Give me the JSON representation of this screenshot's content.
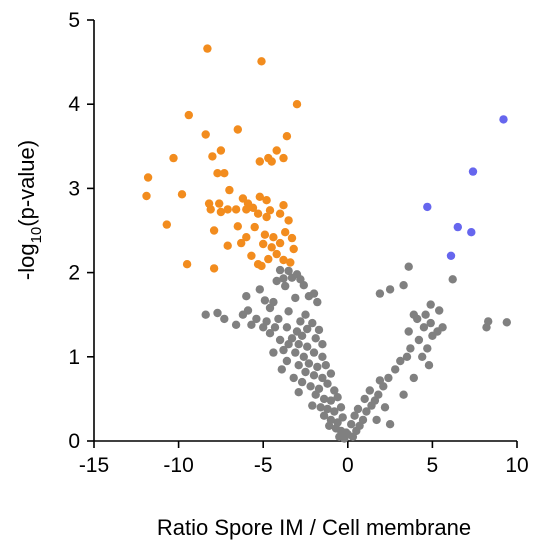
{
  "chart_data": {
    "type": "scatter",
    "title": "",
    "xlabel": "Ratio Spore IM / Cell membrane",
    "ylabel_parts": {
      "prefix": "-log",
      "subscript": "10",
      "suffix": "(p-value)"
    },
    "xlim": [
      -15,
      10
    ],
    "ylim": [
      0,
      5
    ],
    "xticks": [
      "-15",
      "-10",
      "-5",
      "0",
      "5",
      "10"
    ],
    "yticks": [
      "0",
      "1",
      "2",
      "3",
      "4",
      "5"
    ],
    "xtick_values": [
      -15,
      -10,
      -5,
      0,
      5,
      10
    ],
    "ytick_values": [
      0,
      1,
      2,
      3,
      4,
      5
    ],
    "grid": false,
    "legend": "none",
    "series": [
      {
        "color": "#f28c1e",
        "points": [
          [
            -8.3,
            4.66
          ],
          [
            -5.1,
            4.51
          ],
          [
            -3.0,
            4.0
          ],
          [
            -9.4,
            3.87
          ],
          [
            -6.5,
            3.7
          ],
          [
            -3.6,
            3.62
          ],
          [
            -8.4,
            3.64
          ],
          [
            -7.5,
            3.45
          ],
          [
            -4.2,
            3.45
          ],
          [
            -10.3,
            3.36
          ],
          [
            -8.0,
            3.38
          ],
          [
            -4.7,
            3.36
          ],
          [
            -3.8,
            3.36
          ],
          [
            -5.2,
            3.32
          ],
          [
            -4.5,
            3.32
          ],
          [
            -7.7,
            3.18
          ],
          [
            -7.3,
            3.18
          ],
          [
            -11.8,
            3.13
          ],
          [
            -9.8,
            2.93
          ],
          [
            -7.0,
            2.98
          ],
          [
            -11.9,
            2.91
          ],
          [
            -5.2,
            2.9
          ],
          [
            -6.2,
            2.88
          ],
          [
            -4.8,
            2.86
          ],
          [
            -8.2,
            2.82
          ],
          [
            -7.6,
            2.82
          ],
          [
            -5.9,
            2.82
          ],
          [
            -3.8,
            2.8
          ],
          [
            -8.1,
            2.75
          ],
          [
            -7.5,
            2.72
          ],
          [
            -7.1,
            2.75
          ],
          [
            -6.6,
            2.75
          ],
          [
            -6.0,
            2.75
          ],
          [
            -5.6,
            2.77
          ],
          [
            -4.6,
            2.74
          ],
          [
            -4.0,
            2.7
          ],
          [
            -5.3,
            2.7
          ],
          [
            -4.8,
            2.66
          ],
          [
            -3.5,
            2.62
          ],
          [
            -6.5,
            2.55
          ],
          [
            -7.9,
            2.5
          ],
          [
            -10.7,
            2.57
          ],
          [
            -5.5,
            2.54
          ],
          [
            -4.9,
            2.45
          ],
          [
            -3.7,
            2.48
          ],
          [
            -6.0,
            2.42
          ],
          [
            -4.4,
            2.42
          ],
          [
            -3.3,
            2.41
          ],
          [
            -7.1,
            2.32
          ],
          [
            -6.3,
            2.35
          ],
          [
            -5.0,
            2.34
          ],
          [
            -4.5,
            2.3
          ],
          [
            -4.0,
            2.35
          ],
          [
            -3.2,
            2.28
          ],
          [
            -4.2,
            2.22
          ],
          [
            -5.7,
            2.2
          ],
          [
            -4.7,
            2.16
          ],
          [
            -5.3,
            2.1
          ],
          [
            -3.8,
            2.15
          ],
          [
            -3.4,
            2.12
          ],
          [
            -7.9,
            2.05
          ],
          [
            -9.5,
            2.1
          ],
          [
            -5.1,
            2.08
          ]
        ]
      },
      {
        "color": "#6666ee",
        "points": [
          [
            9.2,
            3.82
          ],
          [
            7.4,
            3.2
          ],
          [
            4.7,
            2.78
          ],
          [
            6.5,
            2.54
          ],
          [
            7.3,
            2.48
          ],
          [
            6.1,
            2.2
          ]
        ]
      },
      {
        "color": "#808080",
        "points": [
          [
            -4.0,
            2.03
          ],
          [
            -3.5,
            2.02
          ],
          [
            -4.2,
            1.9
          ],
          [
            -3.8,
            1.93
          ],
          [
            -3.3,
            1.94
          ],
          [
            -3.0,
            1.98
          ],
          [
            -3.7,
            1.84
          ],
          [
            -2.8,
            1.92
          ],
          [
            -2.3,
            1.72
          ],
          [
            -6.0,
            1.72
          ],
          [
            -5.2,
            1.8
          ],
          [
            -4.9,
            1.67
          ],
          [
            -4.4,
            1.65
          ],
          [
            -3.1,
            1.7
          ],
          [
            -2.6,
            1.85
          ],
          [
            -2.0,
            1.75
          ],
          [
            -5.9,
            1.55
          ],
          [
            -4.6,
            1.58
          ],
          [
            -3.5,
            1.54
          ],
          [
            -2.5,
            1.5
          ],
          [
            -1.8,
            1.65
          ],
          [
            -6.2,
            1.5
          ],
          [
            -7.3,
            1.45
          ],
          [
            -7.7,
            1.52
          ],
          [
            -8.4,
            1.5
          ],
          [
            -5.4,
            1.45
          ],
          [
            -4.8,
            1.42
          ],
          [
            -4.1,
            1.45
          ],
          [
            -2.8,
            1.42
          ],
          [
            -2.1,
            1.4
          ],
          [
            -5.7,
            1.38
          ],
          [
            -5.0,
            1.35
          ],
          [
            -4.3,
            1.35
          ],
          [
            -3.6,
            1.35
          ],
          [
            -3.0,
            1.3
          ],
          [
            -2.4,
            1.33
          ],
          [
            -1.7,
            1.32
          ],
          [
            -6.6,
            1.38
          ],
          [
            -4.6,
            1.28
          ],
          [
            -3.3,
            1.22
          ],
          [
            -2.7,
            1.25
          ],
          [
            -1.9,
            1.22
          ],
          [
            -4.0,
            1.2
          ],
          [
            -3.5,
            1.15
          ],
          [
            -2.9,
            1.15
          ],
          [
            -2.4,
            1.12
          ],
          [
            -1.5,
            1.15
          ],
          [
            -4.4,
            1.05
          ],
          [
            -3.8,
            1.08
          ],
          [
            -3.1,
            1.05
          ],
          [
            -2.6,
            1.0
          ],
          [
            -2.0,
            1.05
          ],
          [
            -1.5,
            1.0
          ],
          [
            -3.6,
            0.95
          ],
          [
            -2.9,
            0.9
          ],
          [
            -2.3,
            0.92
          ],
          [
            -1.8,
            0.88
          ],
          [
            -1.3,
            0.9
          ],
          [
            -3.9,
            0.85
          ],
          [
            -2.5,
            0.82
          ],
          [
            -2.0,
            0.78
          ],
          [
            -1.5,
            0.75
          ],
          [
            -1.0,
            0.8
          ],
          [
            -3.2,
            0.75
          ],
          [
            -2.7,
            0.7
          ],
          [
            -2.2,
            0.65
          ],
          [
            -1.7,
            0.62
          ],
          [
            -1.2,
            0.68
          ],
          [
            -0.8,
            0.6
          ],
          [
            -2.9,
            0.58
          ],
          [
            -1.9,
            0.55
          ],
          [
            -1.4,
            0.5
          ],
          [
            -1.0,
            0.48
          ],
          [
            -0.6,
            0.52
          ],
          [
            -2.1,
            0.42
          ],
          [
            -1.6,
            0.4
          ],
          [
            -1.2,
            0.38
          ],
          [
            -0.8,
            0.35
          ],
          [
            -0.4,
            0.4
          ],
          [
            -1.4,
            0.3
          ],
          [
            -1.0,
            0.25
          ],
          [
            -0.6,
            0.22
          ],
          [
            -0.3,
            0.28
          ],
          [
            -1.1,
            0.18
          ],
          [
            -0.7,
            0.15
          ],
          [
            -0.4,
            0.12
          ],
          [
            -0.1,
            0.1
          ],
          [
            -0.5,
            0.05
          ],
          [
            -0.2,
            0.03
          ],
          [
            0.0,
            0.08
          ],
          [
            0.3,
            0.05
          ],
          [
            0.5,
            0.12
          ],
          [
            0.2,
            0.2
          ],
          [
            0.7,
            0.18
          ],
          [
            0.4,
            0.3
          ],
          [
            0.9,
            0.25
          ],
          [
            1.1,
            0.35
          ],
          [
            0.6,
            0.38
          ],
          [
            1.4,
            0.42
          ],
          [
            1.0,
            0.5
          ],
          [
            1.6,
            0.48
          ],
          [
            1.8,
            0.55
          ],
          [
            1.3,
            0.6
          ],
          [
            2.1,
            0.65
          ],
          [
            1.9,
            0.72
          ],
          [
            2.4,
            0.75
          ],
          [
            1.7,
            0.25
          ],
          [
            2.2,
            0.4
          ],
          [
            2.5,
            0.2
          ],
          [
            2.8,
            0.85
          ],
          [
            3.1,
            0.95
          ],
          [
            3.5,
            1.0
          ],
          [
            3.3,
            0.55
          ],
          [
            3.7,
            1.1
          ],
          [
            3.9,
            0.75
          ],
          [
            4.2,
            1.2
          ],
          [
            3.6,
            1.3
          ],
          [
            4.5,
            1.35
          ],
          [
            4.1,
            1.45
          ],
          [
            4.9,
            1.4
          ],
          [
            4.7,
            1.1
          ],
          [
            4.4,
            1.0
          ],
          [
            5.0,
            1.25
          ],
          [
            4.8,
            0.9
          ],
          [
            3.9,
            1.5
          ],
          [
            5.3,
            1.3
          ],
          [
            5.6,
            1.35
          ],
          [
            4.6,
            1.5
          ],
          [
            5.4,
            1.55
          ],
          [
            2.5,
            1.8
          ],
          [
            1.9,
            1.75
          ],
          [
            3.3,
            1.85
          ],
          [
            3.6,
            2.07
          ],
          [
            6.2,
            1.92
          ],
          [
            4.9,
            1.62
          ],
          [
            8.2,
            1.35
          ],
          [
            8.3,
            1.42
          ],
          [
            9.4,
            1.41
          ]
        ]
      }
    ]
  }
}
